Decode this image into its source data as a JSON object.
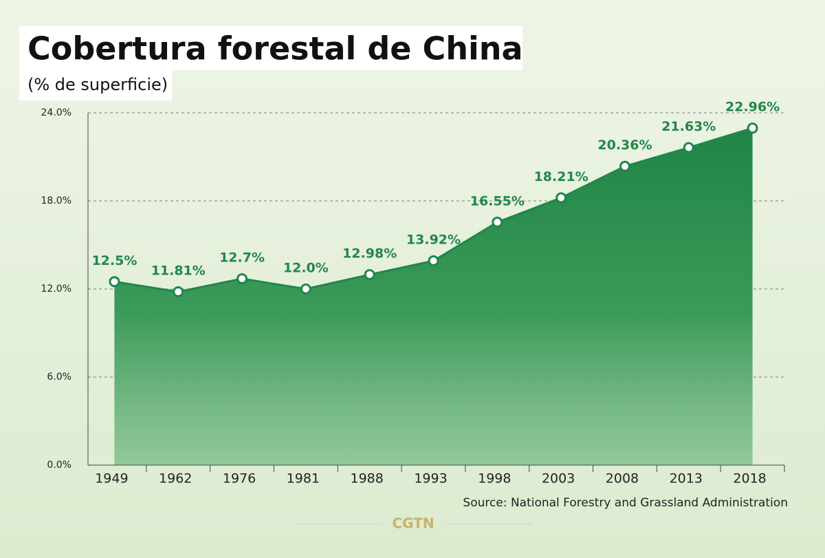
{
  "chart_data": {
    "type": "area",
    "title": "Cobertura forestal de China",
    "subtitle": "(% de superficie)",
    "categories": [
      "1949",
      "1962",
      "1976",
      "1981",
      "1988",
      "1993",
      "1998",
      "2003",
      "2008",
      "2013",
      "2018"
    ],
    "values": [
      12.5,
      11.81,
      12.7,
      12.0,
      12.98,
      13.92,
      16.55,
      18.21,
      20.36,
      21.63,
      22.96
    ],
    "value_labels": [
      "12.5%",
      "11.81%",
      "12.7%",
      "12.0%",
      "12.98%",
      "13.92%",
      "16.55%",
      "18.21%",
      "20.36%",
      "21.63%",
      "22.96%"
    ],
    "color": "#22864a",
    "ylim": [
      0,
      24
    ],
    "yticks": [
      {
        "value": 0,
        "label": "0.0%"
      },
      {
        "value": 6,
        "label": "6.0%"
      },
      {
        "value": 12,
        "label": "12.0%"
      },
      {
        "value": 18,
        "label": "18.0%"
      },
      {
        "value": 24,
        "label": "24.0%"
      }
    ],
    "grid": true,
    "source": "Source: National Forestry and Grassland Administration",
    "logo": "CGTN"
  }
}
